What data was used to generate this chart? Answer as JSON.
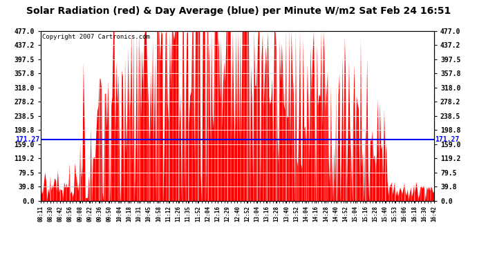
{
  "title": "Solar Radiation (red) & Day Average (blue) per Minute W/m2 Sat Feb 24 16:51",
  "copyright": "Copyright 2007 Cartronics.com",
  "avg_value": 171.27,
  "ymin": 0.0,
  "ymax": 477.0,
  "yticks": [
    0.0,
    39.8,
    79.5,
    119.2,
    159.0,
    198.8,
    238.5,
    278.2,
    318.0,
    357.8,
    397.5,
    437.2,
    477.0
  ],
  "bar_color": "#FF0000",
  "avg_line_color": "#0000FF",
  "avg_label_color": "#0000FF",
  "background_color": "#FFFFFF",
  "title_fontsize": 10,
  "copyright_fontsize": 6.5,
  "x_labels": [
    "08:11",
    "08:30",
    "08:42",
    "08:56",
    "09:08",
    "09:22",
    "09:36",
    "09:50",
    "10:04",
    "10:18",
    "10:31",
    "10:45",
    "10:58",
    "11:12",
    "11:26",
    "11:35",
    "11:52",
    "12:04",
    "12:16",
    "12:29",
    "12:40",
    "12:52",
    "13:04",
    "13:16",
    "13:28",
    "13:40",
    "13:52",
    "14:04",
    "14:16",
    "14:28",
    "14:40",
    "14:52",
    "15:04",
    "15:16",
    "15:28",
    "15:40",
    "15:53",
    "16:06",
    "16:18",
    "16:30",
    "16:42"
  ],
  "n_bars": 370,
  "figwidth": 6.9,
  "figheight": 3.75,
  "dpi": 100
}
